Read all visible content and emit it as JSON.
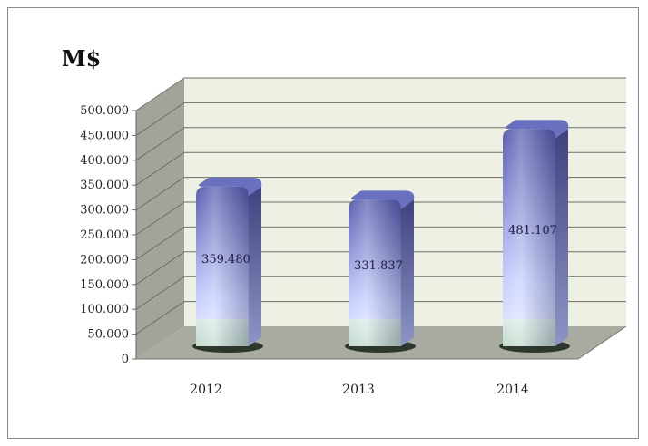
{
  "chart_data": {
    "type": "bar",
    "title": "",
    "ylabel": "M$",
    "xlabel": "",
    "categories": [
      "2012",
      "2013",
      "2014"
    ],
    "values": [
      359.48,
      331.837,
      481.107
    ],
    "value_labels": [
      "359.480",
      "331.837",
      "481.107"
    ],
    "ylim": [
      0,
      500
    ],
    "yticks": [
      {
        "value": 0,
        "label": "0"
      },
      {
        "value": 50,
        "label": "50.000"
      },
      {
        "value": 100,
        "label": "100.000"
      },
      {
        "value": 150,
        "label": "150.000"
      },
      {
        "value": 200,
        "label": "200.000"
      },
      {
        "value": 250,
        "label": "250.000"
      },
      {
        "value": 300,
        "label": "300.000"
      },
      {
        "value": 350,
        "label": "350.000"
      },
      {
        "value": 400,
        "label": "400.000"
      },
      {
        "value": 450,
        "label": "450.000"
      },
      {
        "value": 500,
        "label": "500.000"
      }
    ],
    "grid": true,
    "legend": "none",
    "colors": {
      "bar_top": "#5a5fb0",
      "bar_bottom": "#dde4ff",
      "bar_base": "#cfe6d2",
      "wall": "#eef0e4",
      "floor": "#a9aaa0",
      "side_wall": "#a3a39a"
    }
  }
}
